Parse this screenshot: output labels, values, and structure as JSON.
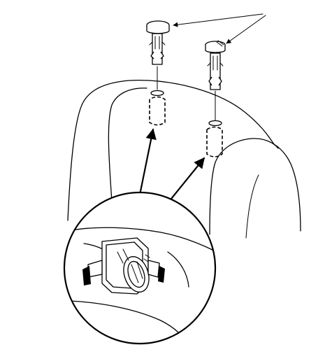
{
  "diagram": {
    "type": "technical-illustration",
    "parts": [
      "headrest-guide-left",
      "headrest-guide-right",
      "seat-back",
      "detail-callout"
    ]
  }
}
